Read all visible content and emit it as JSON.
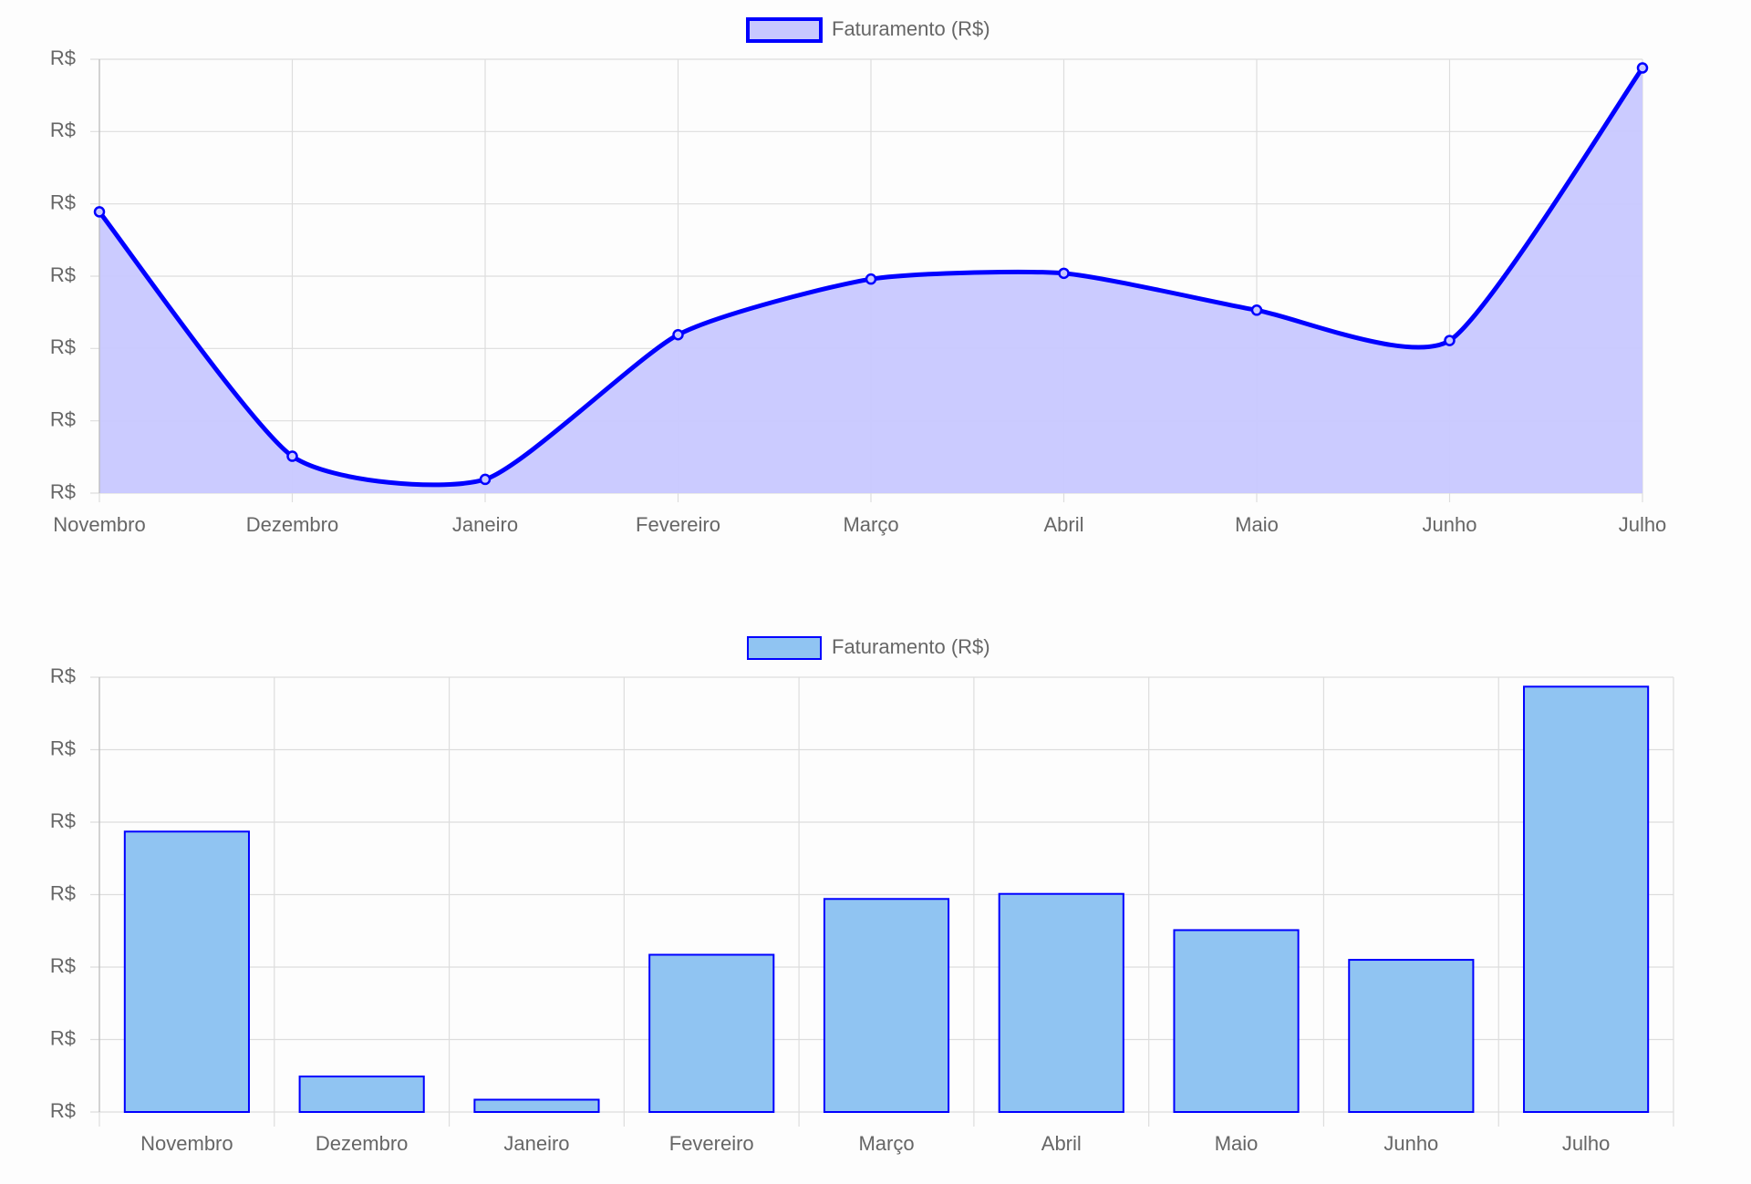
{
  "chart_data": [
    {
      "type": "line",
      "categories": [
        "Novembro",
        "Dezembro",
        "Janeiro",
        "Fevereiro",
        "Março",
        "Abril",
        "Maio",
        "Junho",
        "Julho"
      ],
      "series": [
        {
          "name": "Faturamento (R$)",
          "color": "#0000ff",
          "fill": "#c8c8ff",
          "values": [
            3.89,
            0.51,
            0.19,
            2.19,
            2.96,
            3.04,
            2.53,
            2.11,
            5.88
          ]
        }
      ],
      "ylim": [
        0,
        6
      ],
      "yticks": [
        {
          "value": 0,
          "label": "R$"
        },
        {
          "value": 1,
          "label": "R$"
        },
        {
          "value": 2,
          "label": "R$"
        },
        {
          "value": 3,
          "label": "R$"
        },
        {
          "value": 4,
          "label": "R$"
        },
        {
          "value": 5,
          "label": "R$"
        },
        {
          "value": 6,
          "label": "R$"
        }
      ],
      "grid": true,
      "legend": "top"
    },
    {
      "type": "bar",
      "categories": [
        "Novembro",
        "Dezembro",
        "Janeiro",
        "Fevereiro",
        "Março",
        "Abril",
        "Maio",
        "Junho",
        "Julho"
      ],
      "series": [
        {
          "name": "Faturamento (R$)",
          "color": "#0000ff",
          "fill": "#90c4f2",
          "values": [
            3.87,
            0.49,
            0.17,
            2.17,
            2.94,
            3.01,
            2.51,
            2.1,
            5.87
          ]
        }
      ],
      "ylim": [
        0,
        6
      ],
      "yticks": [
        {
          "value": 0,
          "label": "R$"
        },
        {
          "value": 1,
          "label": "R$"
        },
        {
          "value": 2,
          "label": "R$"
        },
        {
          "value": 3,
          "label": "R$"
        },
        {
          "value": 4,
          "label": "R$"
        },
        {
          "value": 5,
          "label": "R$"
        },
        {
          "value": 6,
          "label": "R$"
        }
      ],
      "grid": true,
      "legend": "top"
    }
  ]
}
